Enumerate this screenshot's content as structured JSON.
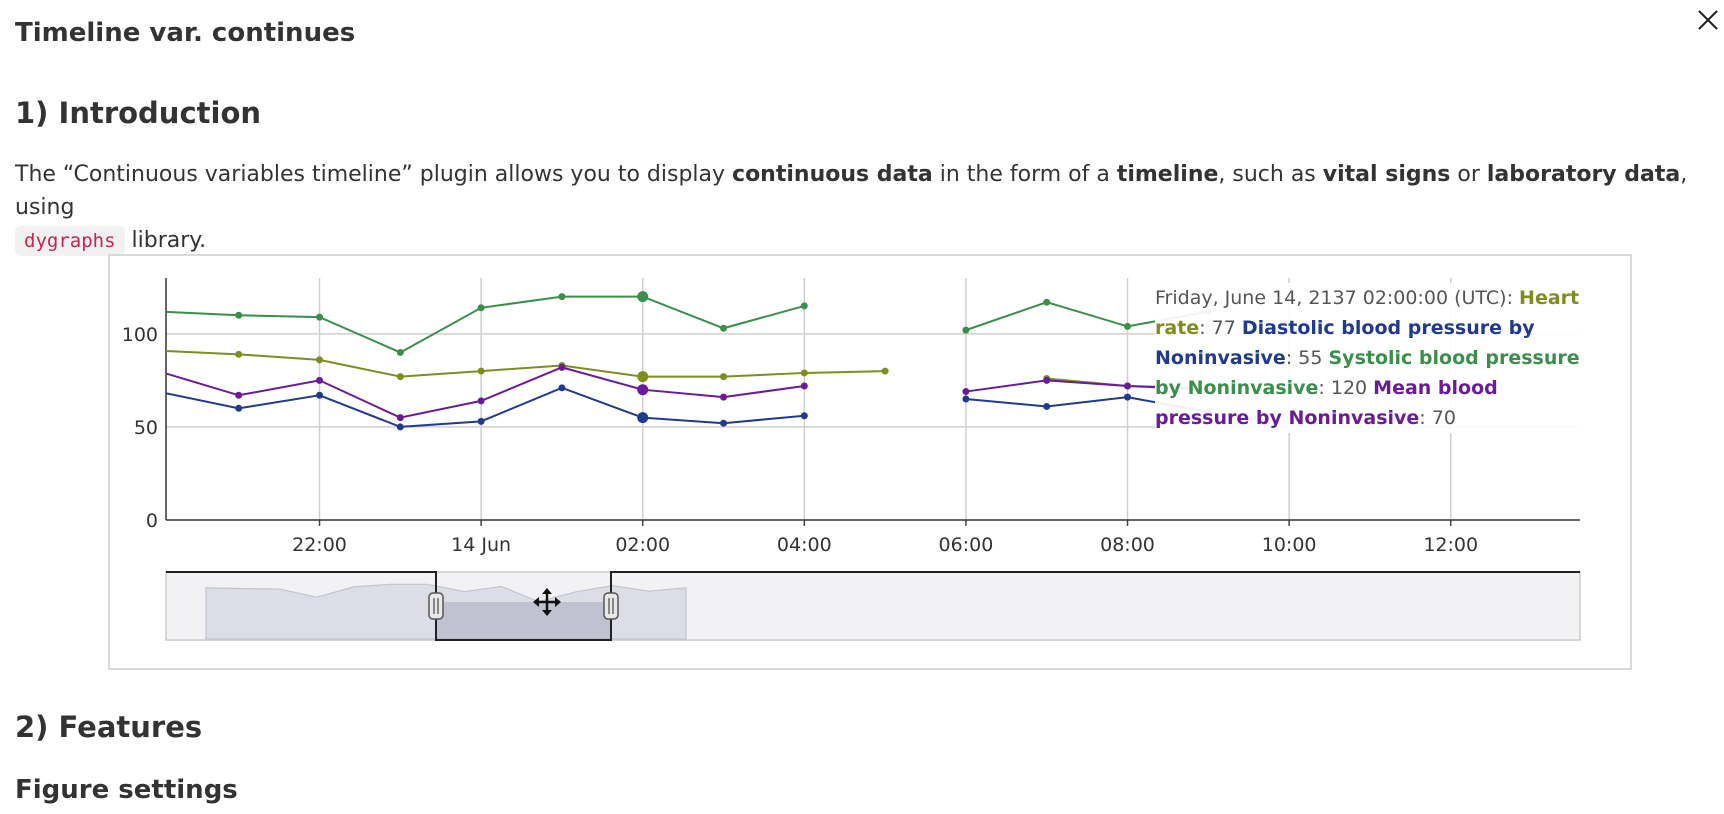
{
  "page": {
    "title": "Timeline var. continues",
    "section1": "1) Introduction",
    "intro": {
      "t1": "The “Continuous variables timeline” plugin allows you to display ",
      "b1": "continuous data",
      "t2": " in the form of a ",
      "b2": "timeline",
      "t3": ", such as ",
      "b3": "vital signs",
      "t4": " or ",
      "b4": "laboratory data",
      "t5": ", using ",
      "code": "dygraphs",
      "t6": " library."
    },
    "section2": "2) Features",
    "subsection": "Figure settings"
  },
  "icons": {
    "close": "close-x-icon",
    "move": "move-arrows-icon"
  },
  "legend": {
    "date": "Friday, June 14, 2137 02:00:00 (UTC): ",
    "hr_label": "Heart rate",
    "hr_value": ": 77 ",
    "dbp_label": "Diastolic blood pressure by Noninvasive",
    "dbp_value": ": 55 ",
    "sbp_label": "Systolic blood pressure by Noninvasive",
    "sbp_value": ": 120 ",
    "mbp_label": "Mean blood pressure by Noninvasive",
    "mbp_value": ": 70"
  },
  "chart_data": {
    "type": "line",
    "title": "",
    "xlabel": "",
    "ylabel": "",
    "x_ticks": [
      "22:00",
      "14 Jun",
      "02:00",
      "04:00",
      "06:00",
      "08:00",
      "10:00",
      "12:00"
    ],
    "y_ticks": [
      0,
      50,
      100
    ],
    "ylim": [
      0,
      130
    ],
    "xlim_hours": [
      20.1,
      37.6
    ],
    "x_hours": [
      20,
      21,
      22,
      23,
      24,
      25,
      26,
      27,
      28,
      29,
      30,
      31,
      32,
      33
    ],
    "highlight_hour": 26,
    "grid": true,
    "legend_position": "top-right",
    "series": [
      {
        "name": "Heart rate",
        "color": "#7f8c1e",
        "values": [
          91,
          89,
          86,
          77,
          80,
          83,
          77,
          77,
          79,
          80,
          null,
          76,
          72,
          71
        ]
      },
      {
        "name": "Diastolic blood pressure by Noninvasive",
        "color": "#1f3a8f",
        "values": [
          69,
          60,
          67,
          50,
          53,
          71,
          55,
          52,
          56,
          null,
          65,
          61,
          66,
          58
        ]
      },
      {
        "name": "Systolic blood pressure by Noninvasive",
        "color": "#3a8f4a",
        "values": [
          112,
          110,
          109,
          90,
          114,
          120,
          120,
          103,
          115,
          null,
          102,
          117,
          104,
          112
        ]
      },
      {
        "name": "Mean blood pressure by Noninvasive",
        "color": "#6a1b9a",
        "values": [
          80,
          67,
          75,
          55,
          64,
          82,
          70,
          66,
          72,
          null,
          69,
          75,
          72,
          70
        ]
      }
    ],
    "range_selector": {
      "selected_from_hour": 23.4,
      "selected_to_hour": 24.9
    }
  }
}
